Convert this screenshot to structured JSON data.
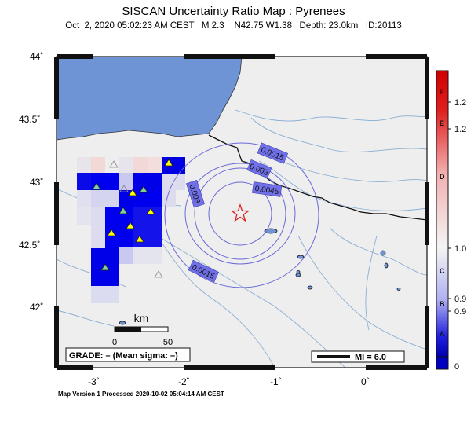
{
  "header": {
    "title": "SISCAN Uncertainty Ratio Map : Pyrenees",
    "subtitle": "Oct  2, 2020 05:02:23 AM CEST   M 2.3    N42.75 W1.38   Depth: 23.0km   ID:20113"
  },
  "map": {
    "lon_range": [
      -3.45,
      0.75
    ],
    "lat_range": [
      41.55,
      44.05
    ],
    "lat_ticks": [
      {
        "value": 44,
        "label": "44˚"
      },
      {
        "value": 43.5,
        "label": "43.5˚"
      },
      {
        "value": 43,
        "label": "43˚"
      },
      {
        "value": 42.5,
        "label": "42.5˚"
      },
      {
        "value": 42,
        "label": "42˚"
      }
    ],
    "lon_ticks": [
      {
        "value": -3,
        "label": "-3˚"
      },
      {
        "value": -2,
        "label": "-2˚"
      },
      {
        "value": -1,
        "label": "-1˚"
      },
      {
        "value": 0,
        "label": "0˚"
      }
    ],
    "colors": {
      "land": "#eeeeee",
      "sea": "#6f94d6",
      "river": "#8aaed2",
      "contour": "#6a6ad8",
      "contour_label_bg": "#7070e8",
      "epicenter": "#e02020",
      "station_fill": "#ffff00",
      "station_fill_alt": "#7fd0a0",
      "outline_station": "#888888"
    },
    "epicenter": {
      "lon": -1.38,
      "lat": 42.75
    },
    "contour_labels": [
      "0.0015",
      "0.003",
      "0.003",
      "0.0045",
      "0.0015"
    ],
    "scale_bar": {
      "label": "km",
      "ticks": [
        "0",
        "50"
      ]
    },
    "grade_text": "GRADE: – (Mean sigma: –)",
    "mi_legend": "MI = 6.0",
    "grid_cells": [
      {
        "lon": -3.0,
        "lat": 43.0,
        "v": 0.08
      },
      {
        "lon": -2.5,
        "lat": 43.1,
        "v": 0.55
      },
      {
        "lon": -2.2,
        "lat": 43.1,
        "v": 0.2
      },
      {
        "lon": -3.2,
        "lat": 43.0,
        "v": 0.08
      },
      {
        "lon": -2.9,
        "lat": 42.9,
        "v": 0.08
      },
      {
        "lon": -2.6,
        "lat": 42.9,
        "v": 0.05
      },
      {
        "lon": -2.4,
        "lat": 42.8,
        "v": 0.05
      },
      {
        "lon": -2.8,
        "lat": 42.6,
        "v": 0.05
      },
      {
        "lon": -2.5,
        "lat": 42.6,
        "v": 0.05
      },
      {
        "lon": -3.0,
        "lat": 42.3,
        "v": 0.04
      }
    ],
    "stations": [
      {
        "lon": -2.15,
        "lat": 43.17,
        "type": "yellow"
      },
      {
        "lon": -3.0,
        "lat": 42.97,
        "type": "green"
      },
      {
        "lon": -2.47,
        "lat": 42.93,
        "type": "green"
      },
      {
        "lon": -2.62,
        "lat": 42.85,
        "type": "yellow"
      },
      {
        "lon": -2.8,
        "lat": 42.77,
        "type": "green"
      },
      {
        "lon": -2.38,
        "lat": 42.78,
        "type": "yellow"
      },
      {
        "lon": -2.66,
        "lat": 42.64,
        "type": "yellow"
      },
      {
        "lon": -2.95,
        "lat": 42.58,
        "type": "yellow"
      },
      {
        "lon": -2.52,
        "lat": 42.54,
        "type": "yellow"
      },
      {
        "lon": -3.1,
        "lat": 42.32,
        "type": "green"
      },
      {
        "lon": -2.93,
        "lat": 43.14,
        "type": "outline"
      },
      {
        "lon": -2.72,
        "lat": 43.06,
        "type": "outline"
      },
      {
        "lon": -2.2,
        "lat": 42.23,
        "type": "outline"
      }
    ]
  },
  "colorbar": {
    "letters": [
      "F",
      "E",
      "D",
      "C",
      "B",
      "A"
    ],
    "values": [
      "1.2",
      "1.2",
      "1.0",
      "0.9",
      "0.9",
      "0"
    ],
    "colors": [
      "#d00000",
      "#e86060",
      "#f4c4c4",
      "#f4f4f4",
      "#c4c4f4",
      "#3030e0",
      "#0000b0"
    ]
  },
  "footer": "Map Version 1 Processed 2020-10-02 05:04:14 AM CEST"
}
